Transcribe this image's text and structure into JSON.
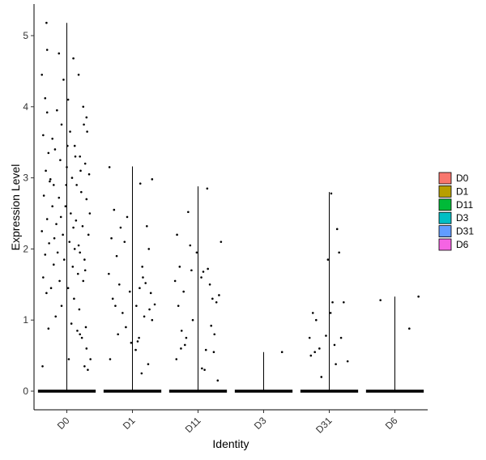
{
  "chart_data": {
    "type": "violin",
    "xlabel": "Identity",
    "ylabel": "Expression Level",
    "categories": [
      "D0",
      "D1",
      "D11",
      "D3",
      "D31",
      "D6"
    ],
    "ylim": [
      -0.25,
      5.45
    ],
    "yticks": [
      0,
      1,
      2,
      3,
      4,
      5
    ],
    "grid": false,
    "legend_position": "right",
    "legend": [
      {
        "label": "D0",
        "color": "#F8766D"
      },
      {
        "label": "D1",
        "color": "#B79F00"
      },
      {
        "label": "D11",
        "color": "#00BA38"
      },
      {
        "label": "D3",
        "color": "#00BFC4"
      },
      {
        "label": "D31",
        "color": "#619CFF"
      },
      {
        "label": "D6",
        "color": "#F564E3"
      }
    ],
    "series": [
      {
        "name": "D0",
        "max": 5.18,
        "points": [
          [
            -0.38,
            4.45
          ],
          [
            -0.33,
            4.12
          ],
          [
            -0.3,
            3.92
          ],
          [
            -0.36,
            3.6
          ],
          [
            -0.28,
            3.35
          ],
          [
            -0.32,
            3.1
          ],
          [
            -0.25,
            2.98
          ],
          [
            -0.35,
            2.75
          ],
          [
            -0.22,
            2.6
          ],
          [
            -0.3,
            2.42
          ],
          [
            -0.38,
            2.25
          ],
          [
            -0.27,
            2.08
          ],
          [
            -0.33,
            1.92
          ],
          [
            -0.2,
            1.78
          ],
          [
            -0.36,
            1.6
          ],
          [
            -0.24,
            1.45
          ],
          [
            -0.31,
            1.38
          ],
          [
            -0.17,
            1.05
          ],
          [
            -0.28,
            0.88
          ],
          [
            -0.37,
            0.35
          ],
          [
            -0.31,
            5.18
          ],
          [
            -0.3,
            4.8
          ],
          [
            -0.12,
            4.75
          ],
          [
            -0.05,
            4.38
          ],
          [
            0.02,
            4.1
          ],
          [
            0.1,
            4.68
          ],
          [
            0.18,
            4.45
          ],
          [
            0.25,
            4.0
          ],
          [
            0.3,
            3.85
          ],
          [
            -0.15,
            3.95
          ],
          [
            -0.08,
            3.75
          ],
          [
            0.05,
            3.65
          ],
          [
            0.12,
            3.45
          ],
          [
            0.2,
            3.3
          ],
          [
            0.28,
            3.2
          ],
          [
            0.34,
            3.05
          ],
          [
            -0.18,
            3.4
          ],
          [
            -0.1,
            3.25
          ],
          [
            0.0,
            3.15
          ],
          [
            0.08,
            3.0
          ],
          [
            0.15,
            2.9
          ],
          [
            0.22,
            2.8
          ],
          [
            0.3,
            2.7
          ],
          [
            -0.2,
            2.9
          ],
          [
            -0.12,
            2.72
          ],
          [
            -0.02,
            2.6
          ],
          [
            0.06,
            2.5
          ],
          [
            0.14,
            2.4
          ],
          [
            0.24,
            2.32
          ],
          [
            0.33,
            2.2
          ],
          [
            -0.16,
            2.35
          ],
          [
            -0.06,
            2.2
          ],
          [
            0.04,
            2.1
          ],
          [
            0.12,
            2.0
          ],
          [
            0.2,
            1.95
          ],
          [
            0.27,
            1.85
          ],
          [
            -0.14,
            1.95
          ],
          [
            -0.04,
            1.85
          ],
          [
            0.09,
            1.75
          ],
          [
            0.17,
            1.65
          ],
          [
            0.25,
            1.55
          ],
          [
            -0.11,
            1.55
          ],
          [
            0.02,
            1.45
          ],
          [
            0.11,
            1.3
          ],
          [
            0.19,
            1.15
          ],
          [
            -0.08,
            1.2
          ],
          [
            0.07,
            0.95
          ],
          [
            0.16,
            0.85
          ],
          [
            0.23,
            0.75
          ],
          [
            0.3,
            0.6
          ],
          [
            0.36,
            0.45
          ],
          [
            0.27,
            0.35
          ],
          [
            0.32,
            0.3
          ],
          [
            0.03,
            0.45
          ],
          [
            0.29,
            0.9
          ],
          [
            0.2,
            0.8
          ],
          [
            -0.22,
            3.55
          ],
          [
            0.31,
            3.65
          ],
          [
            0.26,
            3.75
          ],
          [
            -0.26,
            2.95
          ],
          [
            0.35,
            2.5
          ],
          [
            -0.19,
            2.15
          ],
          [
            0.01,
            3.45
          ],
          [
            0.13,
            3.3
          ],
          [
            -0.09,
            2.45
          ],
          [
            0.18,
            2.05
          ],
          [
            0.28,
            1.7
          ],
          [
            0.1,
            2.3
          ],
          [
            -0.01,
            2.9
          ],
          [
            0.21,
            3.1
          ]
        ]
      },
      {
        "name": "D1",
        "max": 3.16,
        "points": [
          [
            -0.35,
            3.15
          ],
          [
            -0.28,
            2.55
          ],
          [
            -0.32,
            2.15
          ],
          [
            -0.24,
            1.9
          ],
          [
            -0.36,
            1.65
          ],
          [
            -0.2,
            1.5
          ],
          [
            -0.3,
            1.3
          ],
          [
            -0.26,
            1.2
          ],
          [
            -0.15,
            1.1
          ],
          [
            -0.22,
            0.8
          ],
          [
            -0.34,
            0.45
          ],
          [
            -0.08,
            2.45
          ],
          [
            -0.12,
            2.1
          ],
          [
            -0.04,
            1.4
          ],
          [
            0.06,
            1.2
          ],
          [
            -0.1,
            0.9
          ],
          [
            0.12,
            2.92
          ],
          [
            0.3,
            2.98
          ],
          [
            0.22,
            2.32
          ],
          [
            0.25,
            2.0
          ],
          [
            0.15,
            1.75
          ],
          [
            0.2,
            1.52
          ],
          [
            0.28,
            1.38
          ],
          [
            0.34,
            1.22
          ],
          [
            0.18,
            1.05
          ],
          [
            0.1,
            0.75
          ],
          [
            0.05,
            0.58
          ],
          [
            0.24,
            0.38
          ],
          [
            0.14,
            0.25
          ],
          [
            0.08,
            0.7
          ],
          [
            0.26,
            1.15
          ],
          [
            -0.02,
            0.68
          ],
          [
            0.16,
            1.6
          ],
          [
            0.3,
            1.0
          ],
          [
            0.11,
            1.45
          ],
          [
            -0.18,
            2.3
          ]
        ]
      },
      {
        "name": "D11",
        "max": 2.88,
        "points": [
          [
            -0.32,
            2.2
          ],
          [
            -0.28,
            1.75
          ],
          [
            -0.35,
            1.55
          ],
          [
            -0.22,
            1.4
          ],
          [
            -0.3,
            1.2
          ],
          [
            -0.25,
            0.85
          ],
          [
            -0.18,
            0.75
          ],
          [
            -0.26,
            0.6
          ],
          [
            -0.33,
            0.45
          ],
          [
            -0.15,
            2.52
          ],
          [
            -0.12,
            2.05
          ],
          [
            -0.1,
            1.7
          ],
          [
            -0.08,
            1.0
          ],
          [
            -0.02,
            1.95
          ],
          [
            0.05,
            1.6
          ],
          [
            0.15,
            1.72
          ],
          [
            0.18,
            1.5
          ],
          [
            0.22,
            1.3
          ],
          [
            0.28,
            1.25
          ],
          [
            0.35,
            2.1
          ],
          [
            0.32,
            1.35
          ],
          [
            0.2,
            0.92
          ],
          [
            0.25,
            0.8
          ],
          [
            0.12,
            0.58
          ],
          [
            0.06,
            0.32
          ],
          [
            0.1,
            0.3
          ],
          [
            0.3,
            0.15
          ],
          [
            0.14,
            2.85
          ],
          [
            0.08,
            1.68
          ],
          [
            -0.2,
            0.65
          ],
          [
            0.24,
            0.55
          ]
        ]
      },
      {
        "name": "D3",
        "max": 0.55,
        "points": [
          [
            0.28,
            0.55
          ]
        ]
      },
      {
        "name": "D31",
        "max": 2.8,
        "points": [
          [
            -0.25,
            1.1
          ],
          [
            -0.2,
            1.0
          ],
          [
            -0.3,
            0.75
          ],
          [
            -0.15,
            0.6
          ],
          [
            -0.22,
            0.55
          ],
          [
            -0.28,
            0.5
          ],
          [
            -0.12,
            0.2
          ],
          [
            -0.02,
            1.85
          ],
          [
            0.02,
            1.1
          ],
          [
            -0.05,
            0.78
          ],
          [
            0.05,
            1.25
          ],
          [
            0.08,
            0.65
          ],
          [
            0.12,
            2.28
          ],
          [
            0.15,
            1.95
          ],
          [
            0.18,
            0.75
          ],
          [
            0.22,
            1.25
          ],
          [
            0.28,
            0.42
          ],
          [
            0.03,
            2.78
          ],
          [
            0.1,
            0.38
          ]
        ]
      },
      {
        "name": "D6",
        "max": 1.33,
        "points": [
          [
            -0.22,
            1.28
          ],
          [
            0.22,
            0.88
          ],
          [
            0.36,
            1.33
          ]
        ]
      }
    ]
  }
}
